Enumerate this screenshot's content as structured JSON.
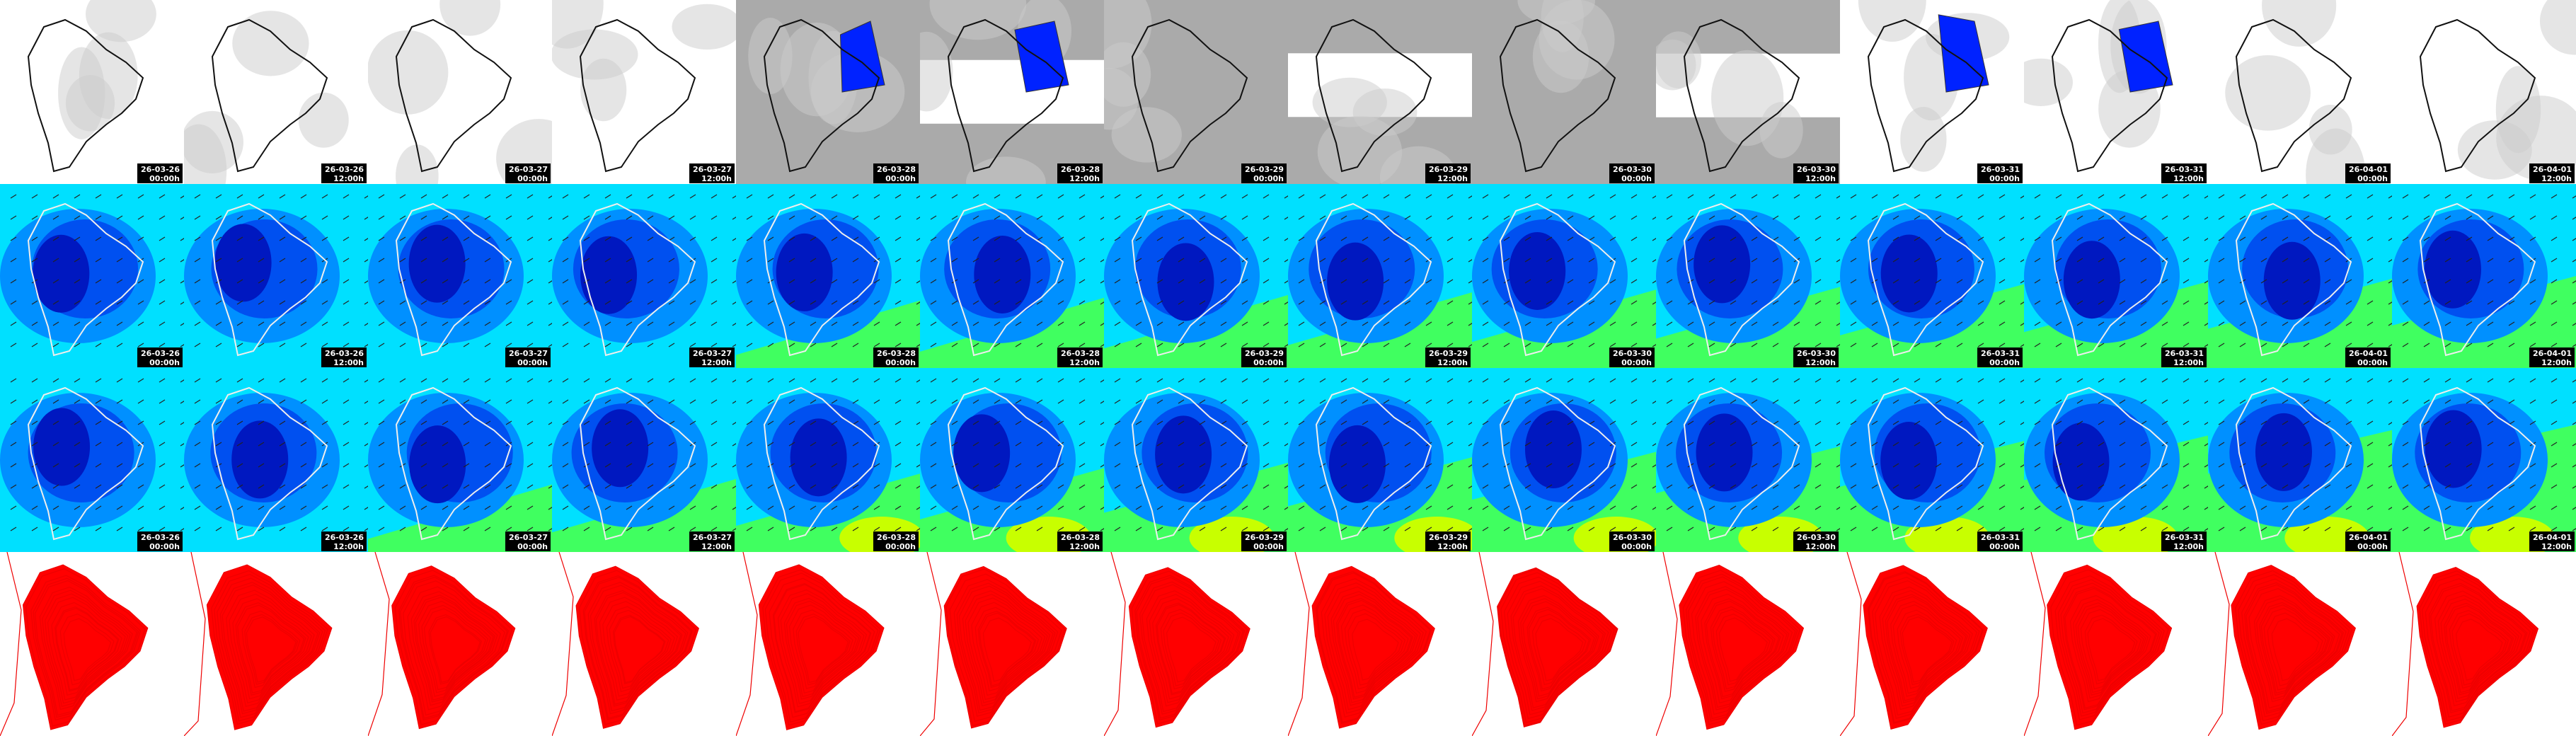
{
  "timestamps": [
    {
      "date": "26-03-26",
      "time": "00:00h"
    },
    {
      "date": "26-03-26",
      "time": "12:00h"
    },
    {
      "date": "26-03-27",
      "time": "00:00h"
    },
    {
      "date": "26-03-27",
      "time": "12:00h"
    },
    {
      "date": "26-03-28",
      "time": "00:00h"
    },
    {
      "date": "26-03-28",
      "time": "12:00h"
    },
    {
      "date": "26-03-29",
      "time": "00:00h"
    },
    {
      "date": "26-03-29",
      "time": "12:00h"
    },
    {
      "date": "26-03-30",
      "time": "00:00h"
    },
    {
      "date": "26-03-30",
      "time": "12:00h"
    },
    {
      "date": "26-03-31",
      "time": "00:00h"
    },
    {
      "date": "26-03-31",
      "time": "12:00h"
    },
    {
      "date": "26-04-01",
      "time": "00:00h"
    },
    {
      "date": "26-04-01",
      "time": "12:00h"
    }
  ]
}
